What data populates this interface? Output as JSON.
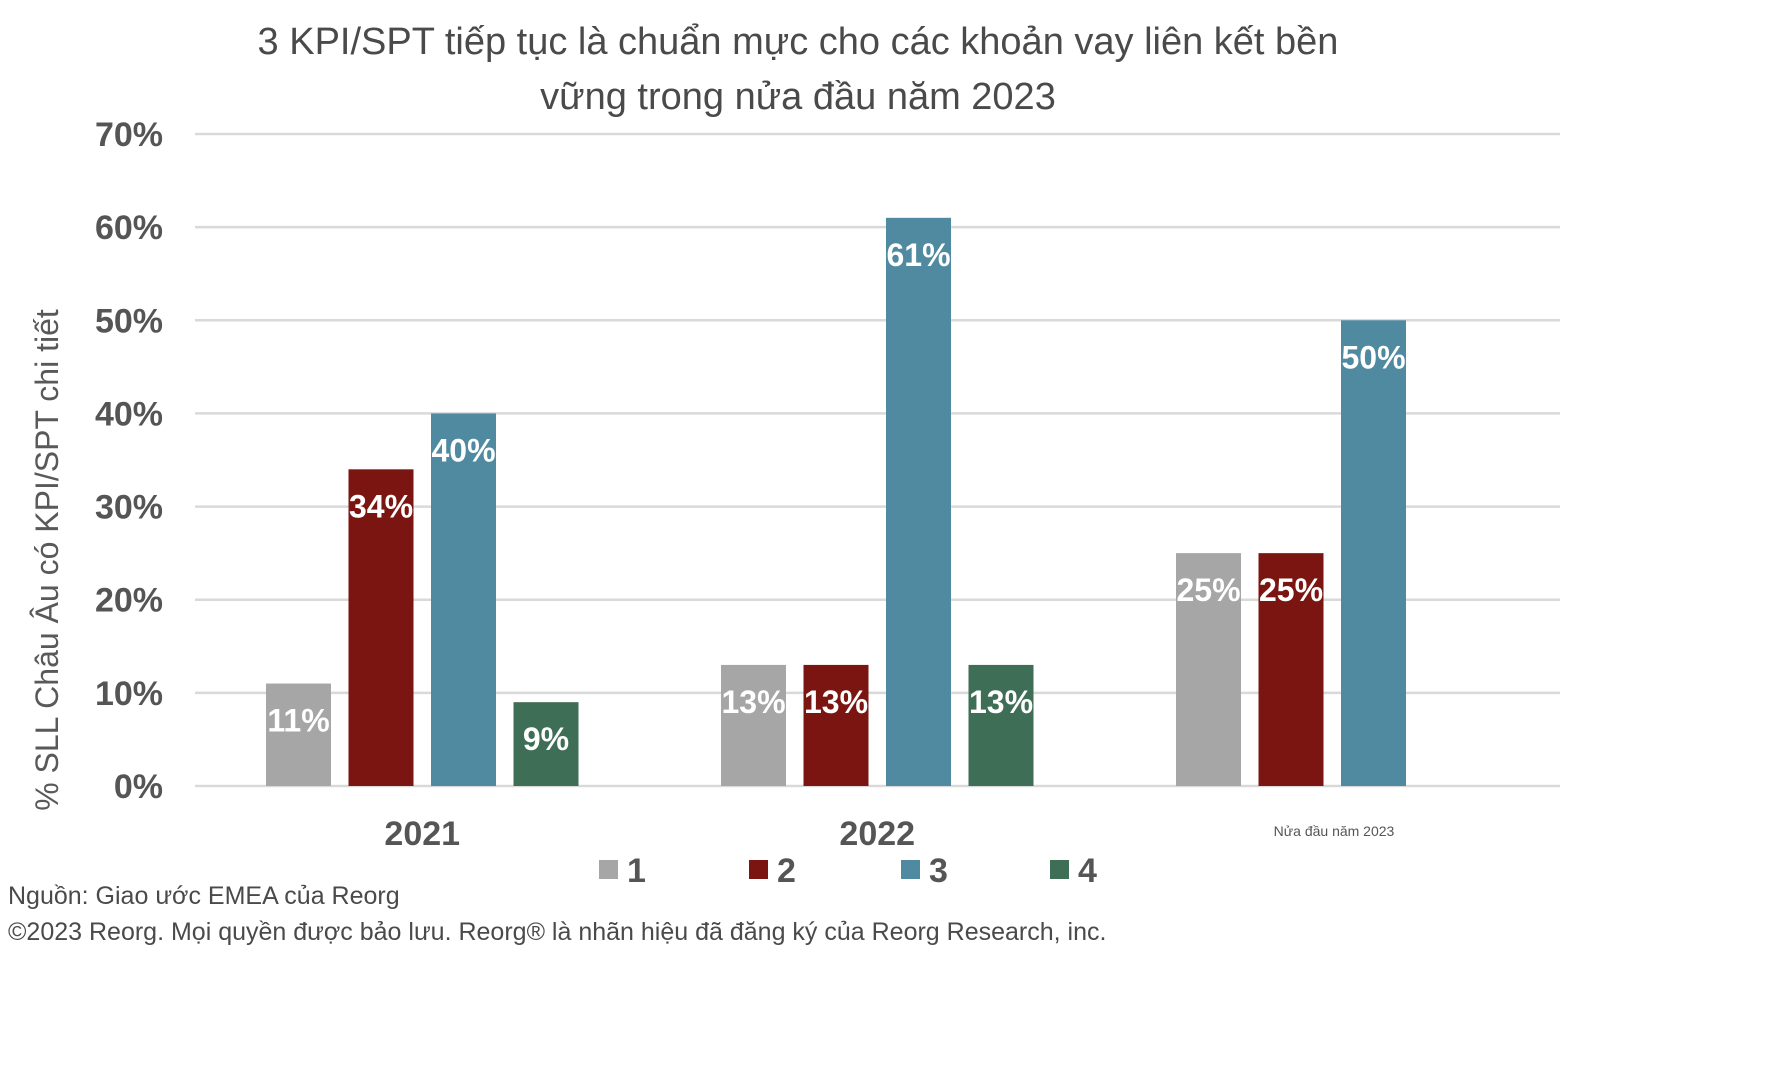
{
  "chart_data": {
    "type": "bar",
    "title_lines": [
      "3 KPI/SPT tiếp tục là chuẩn mực cho các khoản vay liên kết bền",
      "vững trong nửa đầu năm 2023"
    ],
    "ylabel": "% SLL Châu Âu có KPI/SPT chi tiết",
    "xlabel": "",
    "ylim": [
      0,
      70
    ],
    "ytick_labels": [
      "0%",
      "10%",
      "20%",
      "30%",
      "40%",
      "50%",
      "60%",
      "70%"
    ],
    "grid": true,
    "legend_position": "bottom",
    "categories": [
      "2021",
      "2022",
      "Nửa đầu năm 2023"
    ],
    "series": [
      {
        "name": "1",
        "color": "#a6a6a6",
        "values": [
          11,
          13,
          25
        ],
        "labels": [
          "11%",
          "13%",
          "25%"
        ]
      },
      {
        "name": "2",
        "color": "#7b1511",
        "values": [
          34,
          13,
          25
        ],
        "labels": [
          "34%",
          "13%",
          "25%"
        ]
      },
      {
        "name": "3",
        "color": "#4f8aa0",
        "values": [
          40,
          61,
          50
        ],
        "labels": [
          "40%",
          "61%",
          "50%"
        ]
      },
      {
        "name": "4",
        "color": "#3f6e56",
        "values": [
          9,
          13,
          null
        ],
        "labels": [
          "9%",
          "13%",
          ""
        ]
      }
    ]
  },
  "footer": {
    "source": "Nguồn: Giao ước EMEA của Reorg",
    "copyright": "©2023 Reorg. Mọi quyền được bảo lưu. Reorg® là nhãn hiệu đã đăng ký của Reorg Research, inc."
  }
}
